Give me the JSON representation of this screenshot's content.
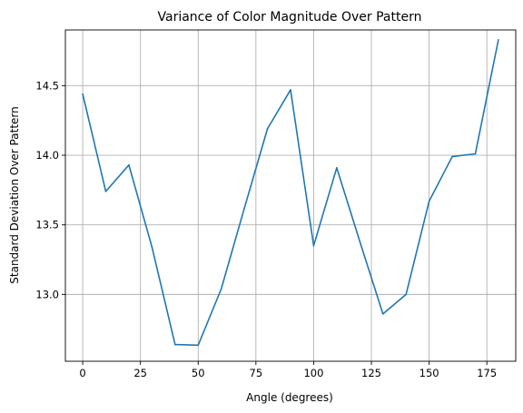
{
  "chart_data": {
    "type": "line",
    "title": "Variance of Color Magnitude Over Pattern",
    "xlabel": "Angle (degrees)",
    "ylabel": "Standard Deviation Over Pattern",
    "xlim": [
      -7.5,
      187.5
    ],
    "ylim": [
      12.52,
      14.9
    ],
    "xticks": [
      0,
      25,
      50,
      75,
      100,
      125,
      150,
      175
    ],
    "yticks": [
      13.0,
      13.5,
      14.0,
      14.5
    ],
    "ytick_labels": [
      "13.0",
      "13.5",
      "14.0",
      "14.5"
    ],
    "grid": true,
    "series": [
      {
        "color": "#1f77b4",
        "x": [
          0,
          10,
          20,
          30,
          40,
          50,
          60,
          70,
          80,
          90,
          100,
          110,
          120,
          130,
          140,
          150,
          160,
          170,
          180
        ],
        "y": [
          14.44,
          13.74,
          13.93,
          13.34,
          12.64,
          12.635,
          13.04,
          13.62,
          14.19,
          14.47,
          13.35,
          13.91,
          13.38,
          12.86,
          13.0,
          13.67,
          13.99,
          14.01,
          14.83
        ]
      }
    ]
  }
}
